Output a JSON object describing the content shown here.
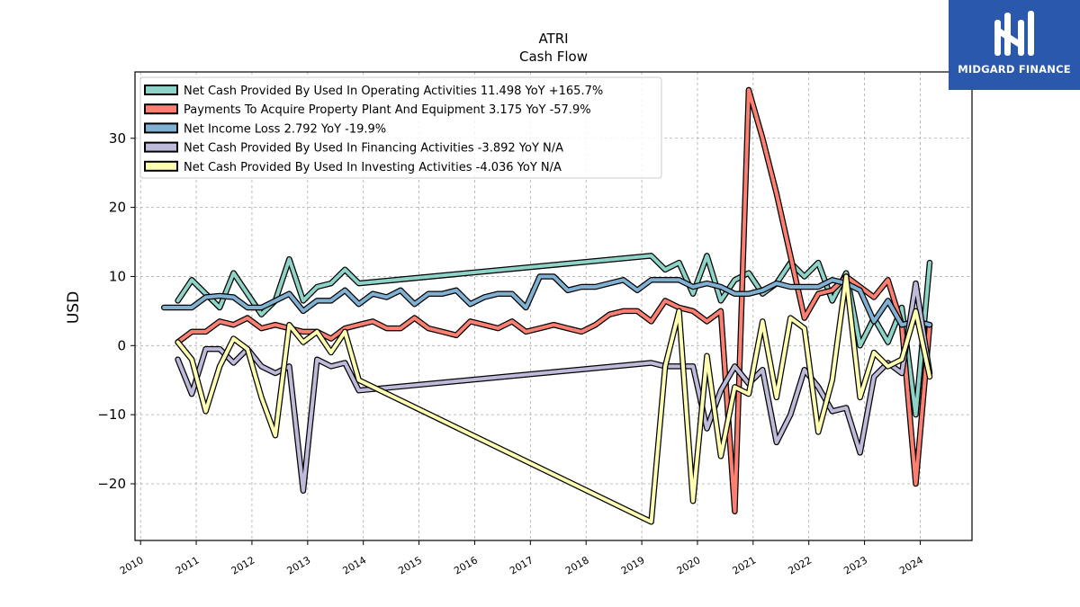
{
  "brand": {
    "name": "MIDGARD FINANCE",
    "bg_color": "#2a58ad"
  },
  "chart_data": {
    "type": "line",
    "title": "ATRI",
    "subtitle": "Cash Flow",
    "ylabel": "USD",
    "xlabel": "",
    "xlim": [
      2009.9,
      2024.93
    ],
    "ylim": [
      -28.2,
      39.6
    ],
    "x_ticks": [
      "2010",
      "2011",
      "2012",
      "2013",
      "2014",
      "2015",
      "2016",
      "2017",
      "2018",
      "2019",
      "2020",
      "2021",
      "2022",
      "2023",
      "2024"
    ],
    "y_ticks": [
      -20,
      -10,
      0,
      10,
      20,
      30
    ],
    "y_tick_labels": [
      "−20",
      "−10",
      "0",
      "10",
      "20",
      "30"
    ],
    "grid": true,
    "legend_position": "top-left",
    "series": [
      {
        "name": "Net Cash Provided By Used In Operating Activities",
        "legend_label": "Net Cash Provided By Used In Operating Activities  11.498 YoY +165.7%",
        "color": "#8dd3c7",
        "x": [
          2010.67,
          2010.92,
          2011.17,
          2011.42,
          2011.67,
          2011.92,
          2012.17,
          2012.42,
          2012.67,
          2012.92,
          2013.17,
          2013.42,
          2013.67,
          2013.92,
          2019.17,
          2019.42,
          2019.67,
          2019.92,
          2020.17,
          2020.42,
          2020.67,
          2020.92,
          2021.17,
          2021.42,
          2021.67,
          2021.92,
          2022.17,
          2022.42,
          2022.67,
          2022.92,
          2023.17,
          2023.42,
          2023.67,
          2023.92,
          2024.17
        ],
        "y": [
          6.5,
          9.5,
          7.5,
          5.5,
          10.5,
          7.5,
          4.5,
          6.5,
          12.5,
          6.5,
          8.5,
          9.0,
          11.0,
          9.0,
          13.0,
          11.0,
          12.0,
          7.5,
          13.0,
          6.5,
          9.5,
          10.5,
          7.5,
          9.0,
          12.0,
          10.0,
          12.0,
          6.5,
          10.5,
          0.0,
          4.0,
          0.5,
          5.5,
          -10.0,
          12.0
        ]
      },
      {
        "name": "Payments To Acquire Property Plant And Equipment",
        "legend_label": "Payments To Acquire Property Plant And Equipment  3.175 YoY -57.9%",
        "color": "#fb8072",
        "x": [
          2010.67,
          2010.92,
          2011.17,
          2011.42,
          2011.67,
          2011.92,
          2012.17,
          2012.42,
          2012.67,
          2012.92,
          2013.17,
          2013.42,
          2013.67,
          2013.92,
          2014.17,
          2014.42,
          2014.67,
          2014.92,
          2015.17,
          2015.42,
          2015.67,
          2015.92,
          2016.17,
          2016.42,
          2016.67,
          2016.92,
          2017.17,
          2017.42,
          2017.67,
          2017.92,
          2018.17,
          2018.42,
          2018.67,
          2018.92,
          2019.17,
          2019.42,
          2019.67,
          2019.92,
          2020.17,
          2020.42,
          2020.67,
          2020.92,
          2021.17,
          2021.42,
          2021.67,
          2021.92,
          2022.17,
          2022.42,
          2022.67,
          2022.92,
          2023.17,
          2023.42,
          2023.67,
          2023.92,
          2024.17
        ],
        "y": [
          0.5,
          2.0,
          2.0,
          3.5,
          3.0,
          4.0,
          2.5,
          3.0,
          2.5,
          2.0,
          2.0,
          1.0,
          2.5,
          3.0,
          3.5,
          2.5,
          2.5,
          4.0,
          2.5,
          2.0,
          1.5,
          3.5,
          3.0,
          2.5,
          3.5,
          2.0,
          2.5,
          3.0,
          2.5,
          2.0,
          3.0,
          4.5,
          5.0,
          5.0,
          3.5,
          6.5,
          5.5,
          5.0,
          3.5,
          5.0,
          -24.0,
          37.0,
          30.0,
          22.0,
          13.0,
          4.0,
          7.5,
          8.0,
          10.0,
          8.5,
          7.0,
          9.5,
          3.0,
          -20.0,
          3.0
        ]
      },
      {
        "name": "Net Income Loss",
        "legend_label": "Net Income Loss  2.792 YoY -19.9%",
        "color": "#80b1d3",
        "x": [
          2010.42,
          2010.67,
          2010.92,
          2011.17,
          2011.42,
          2011.67,
          2011.92,
          2012.17,
          2012.42,
          2012.67,
          2012.92,
          2013.17,
          2013.42,
          2013.67,
          2013.92,
          2014.17,
          2014.42,
          2014.67,
          2014.92,
          2015.17,
          2015.42,
          2015.67,
          2015.92,
          2016.17,
          2016.42,
          2016.67,
          2016.92,
          2017.17,
          2017.42,
          2017.67,
          2017.92,
          2018.17,
          2018.42,
          2018.67,
          2018.92,
          2019.17,
          2019.42,
          2019.67,
          2019.92,
          2020.17,
          2020.42,
          2020.67,
          2020.92,
          2021.17,
          2021.42,
          2021.67,
          2021.92,
          2022.17,
          2022.42,
          2022.67,
          2022.92,
          2023.17,
          2023.42,
          2023.67,
          2023.92,
          2024.17
        ],
        "y": [
          5.5,
          5.5,
          5.5,
          7.0,
          7.2,
          7.0,
          5.5,
          5.5,
          6.5,
          7.5,
          5.0,
          6.5,
          6.5,
          8.0,
          6.0,
          7.5,
          7.0,
          8.0,
          6.0,
          7.5,
          7.5,
          8.0,
          6.0,
          7.0,
          7.5,
          7.5,
          5.5,
          10.0,
          10.0,
          8.0,
          8.5,
          8.5,
          9.0,
          9.5,
          8.0,
          9.5,
          9.5,
          9.5,
          8.5,
          9.0,
          8.5,
          7.5,
          7.5,
          8.0,
          9.0,
          8.5,
          8.5,
          8.5,
          9.5,
          9.0,
          8.0,
          3.5,
          6.5,
          3.0,
          3.5,
          3.0
        ]
      },
      {
        "name": "Net Cash Provided By Used In Financing Activities",
        "legend_label": "Net Cash Provided By Used In Financing Activities  -3.892 YoY N/A",
        "color": "#bebada",
        "x": [
          2010.67,
          2010.92,
          2011.17,
          2011.42,
          2011.67,
          2011.92,
          2012.17,
          2012.42,
          2012.67,
          2012.92,
          2013.17,
          2013.42,
          2013.67,
          2013.92,
          2019.17,
          2019.42,
          2019.67,
          2019.92,
          2020.17,
          2020.42,
          2020.67,
          2020.92,
          2021.17,
          2021.42,
          2021.67,
          2021.92,
          2022.17,
          2022.42,
          2022.67,
          2022.92,
          2023.17,
          2023.42,
          2023.67,
          2023.92,
          2024.17
        ],
        "y": [
          -2.0,
          -7.0,
          -0.5,
          -0.5,
          -2.5,
          -0.5,
          -3.0,
          -4.0,
          -3.0,
          -21.0,
          -2.0,
          -3.0,
          -2.5,
          -6.5,
          -2.5,
          -3.0,
          -3.0,
          -3.0,
          -12.0,
          -6.5,
          -3.0,
          -5.5,
          -3.5,
          -14.0,
          -10.0,
          -3.5,
          -6.0,
          -9.5,
          -9.0,
          -15.5,
          -4.5,
          -2.5,
          -4.0,
          9.0,
          -4.0
        ]
      },
      {
        "name": "Net Cash Provided By Used In Investing Activities",
        "legend_label": "Net Cash Provided By Used In Investing Activities  -4.036 YoY N/A",
        "color": "#ffffb3",
        "x": [
          2010.67,
          2010.92,
          2011.17,
          2011.42,
          2011.67,
          2011.92,
          2012.17,
          2012.42,
          2012.67,
          2012.92,
          2013.17,
          2013.42,
          2013.67,
          2013.92,
          2019.17,
          2019.42,
          2019.67,
          2019.92,
          2020.17,
          2020.42,
          2020.67,
          2020.92,
          2021.17,
          2021.42,
          2021.67,
          2021.92,
          2022.17,
          2022.42,
          2022.67,
          2022.92,
          2023.17,
          2023.42,
          2023.67,
          2023.92,
          2024.17
        ],
        "y": [
          0.5,
          -2.0,
          -9.5,
          -3.0,
          1.0,
          -0.5,
          -7.5,
          -13.0,
          3.0,
          0.5,
          2.0,
          -1.0,
          2.0,
          -5.0,
          -25.5,
          -3.0,
          5.0,
          -22.5,
          -1.5,
          -16.0,
          -6.0,
          -7.0,
          3.5,
          -7.5,
          4.0,
          2.5,
          -12.5,
          -5.0,
          10.0,
          -7.5,
          -1.0,
          -3.0,
          -2.0,
          5.0,
          -4.5
        ]
      }
    ]
  }
}
